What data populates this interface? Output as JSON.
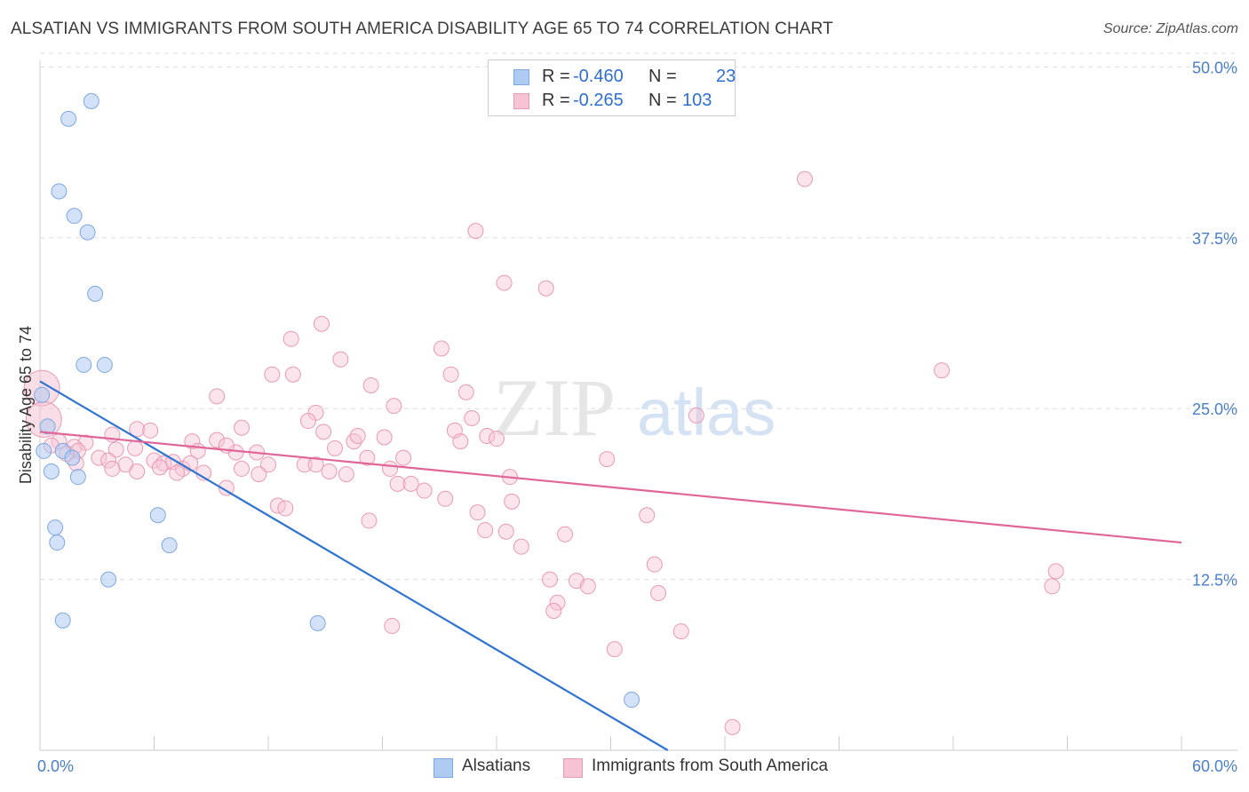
{
  "title": "ALSATIAN VS IMMIGRANTS FROM SOUTH AMERICA DISABILITY AGE 65 TO 74 CORRELATION CHART",
  "source": "Source: ZipAtlas.com",
  "legend": {
    "rows": [
      {
        "r_label": "R =",
        "r_value": "-0.460",
        "n_label": "N =",
        "n_value": "23"
      },
      {
        "r_label": "R =",
        "r_value": "-0.265",
        "n_label": "N =",
        "n_value": "103"
      }
    ]
  },
  "colors": {
    "blue_fill": "#aecbf2",
    "blue_stroke": "#7ea8e0",
    "blue_line": "#2f74d0",
    "pink_fill": "#f6c3d4",
    "pink_stroke": "#e99ab5",
    "pink_line": "#e0669a",
    "grid": "#dddddd",
    "axis_text": "#4a7fc9"
  },
  "chart_data": {
    "type": "scatter",
    "title": "ALSATIAN VS IMMIGRANTS FROM SOUTH AMERICA DISABILITY AGE 65 TO 74 CORRELATION CHART",
    "xlabel": "",
    "ylabel": "Disability Age 65 to 74",
    "xlim": [
      0,
      60
    ],
    "ylim": [
      0,
      51
    ],
    "x_tick_labels": [
      "0.0%",
      "60.0%"
    ],
    "y_ticks": [
      12.5,
      25.0,
      37.5,
      50.0
    ],
    "y_tick_labels": [
      "12.5%",
      "25.0%",
      "37.5%",
      "50.0%"
    ],
    "watermark": "ZIPatlas",
    "series": [
      {
        "name": "Alsatians",
        "trend": {
          "x0": 0,
          "y0": 27.0,
          "x1": 33.0,
          "y1": 0
        },
        "points": [
          [
            2.7,
            47.5
          ],
          [
            1.5,
            46.2
          ],
          [
            1.0,
            40.9
          ],
          [
            1.8,
            39.1
          ],
          [
            2.5,
            37.9
          ],
          [
            2.9,
            33.4
          ],
          [
            2.3,
            28.2
          ],
          [
            3.4,
            28.2
          ],
          [
            0.1,
            26.0
          ],
          [
            0.4,
            23.7
          ],
          [
            0.2,
            21.9
          ],
          [
            1.2,
            21.9
          ],
          [
            1.7,
            21.4
          ],
          [
            0.6,
            20.4
          ],
          [
            2.0,
            20.0
          ],
          [
            6.2,
            17.2
          ],
          [
            0.8,
            16.3
          ],
          [
            0.9,
            15.2
          ],
          [
            6.8,
            15.0
          ],
          [
            3.6,
            12.5
          ],
          [
            1.2,
            9.5
          ],
          [
            14.6,
            9.3
          ],
          [
            31.1,
            3.7
          ]
        ]
      },
      {
        "name": "Immigrants from South America",
        "trend": {
          "x0": 0,
          "y0": 23.3,
          "x1": 60,
          "y1": 15.2
        },
        "points": [
          [
            0.1,
            26.5
          ],
          [
            0.2,
            24.2
          ],
          [
            40.2,
            41.8
          ],
          [
            22.9,
            38.0
          ],
          [
            24.4,
            34.2
          ],
          [
            26.6,
            33.8
          ],
          [
            14.8,
            31.2
          ],
          [
            13.2,
            30.1
          ],
          [
            21.1,
            29.4
          ],
          [
            15.8,
            28.6
          ],
          [
            47.4,
            27.8
          ],
          [
            12.2,
            27.5
          ],
          [
            13.3,
            27.5
          ],
          [
            21.6,
            27.5
          ],
          [
            17.4,
            26.7
          ],
          [
            22.4,
            26.2
          ],
          [
            9.3,
            25.9
          ],
          [
            18.6,
            25.2
          ],
          [
            14.5,
            24.7
          ],
          [
            14.1,
            24.1
          ],
          [
            34.5,
            24.5
          ],
          [
            22.7,
            24.3
          ],
          [
            10.6,
            23.6
          ],
          [
            5.1,
            23.5
          ],
          [
            5.8,
            23.4
          ],
          [
            14.9,
            23.3
          ],
          [
            21.8,
            23.4
          ],
          [
            3.8,
            23.1
          ],
          [
            16.5,
            22.6
          ],
          [
            16.7,
            23.0
          ],
          [
            18.1,
            22.9
          ],
          [
            23.5,
            23.0
          ],
          [
            24.0,
            22.8
          ],
          [
            22.1,
            22.6
          ],
          [
            9.3,
            22.7
          ],
          [
            8.0,
            22.6
          ],
          [
            1.0,
            22.6
          ],
          [
            2.4,
            22.5
          ],
          [
            1.8,
            22.2
          ],
          [
            4.0,
            22.0
          ],
          [
            8.3,
            21.9
          ],
          [
            10.3,
            21.8
          ],
          [
            11.4,
            21.8
          ],
          [
            2.0,
            21.9
          ],
          [
            3.1,
            21.4
          ],
          [
            3.6,
            21.2
          ],
          [
            6.0,
            21.2
          ],
          [
            6.5,
            21.0
          ],
          [
            7.0,
            21.1
          ],
          [
            17.2,
            21.4
          ],
          [
            12.0,
            20.9
          ],
          [
            13.9,
            20.9
          ],
          [
            4.5,
            20.9
          ],
          [
            3.8,
            20.6
          ],
          [
            5.1,
            20.4
          ],
          [
            6.3,
            20.7
          ],
          [
            7.5,
            20.6
          ],
          [
            7.2,
            20.3
          ],
          [
            8.6,
            20.3
          ],
          [
            10.6,
            20.6
          ],
          [
            11.5,
            20.2
          ],
          [
            14.5,
            20.9
          ],
          [
            15.2,
            20.4
          ],
          [
            16.1,
            20.2
          ],
          [
            18.4,
            20.6
          ],
          [
            1.9,
            21.0
          ],
          [
            29.8,
            21.3
          ],
          [
            24.7,
            20.0
          ],
          [
            9.8,
            19.2
          ],
          [
            18.8,
            19.5
          ],
          [
            19.5,
            19.5
          ],
          [
            20.2,
            19.0
          ],
          [
            21.3,
            18.4
          ],
          [
            24.8,
            18.2
          ],
          [
            12.5,
            17.9
          ],
          [
            12.9,
            17.7
          ],
          [
            23.0,
            17.4
          ],
          [
            31.9,
            17.2
          ],
          [
            17.3,
            16.8
          ],
          [
            23.4,
            16.1
          ],
          [
            24.5,
            16.0
          ],
          [
            27.6,
            15.8
          ],
          [
            25.3,
            14.9
          ],
          [
            32.3,
            13.6
          ],
          [
            26.8,
            12.5
          ],
          [
            27.2,
            10.8
          ],
          [
            27.0,
            10.2
          ],
          [
            28.2,
            12.4
          ],
          [
            32.5,
            11.5
          ],
          [
            33.7,
            8.7
          ],
          [
            18.5,
            9.1
          ],
          [
            30.2,
            7.4
          ],
          [
            36.4,
            1.7
          ],
          [
            53.4,
            13.1
          ],
          [
            53.2,
            12.0
          ],
          [
            0.6,
            22.3
          ],
          [
            1.4,
            21.7
          ],
          [
            5.0,
            22.1
          ],
          [
            7.9,
            21.0
          ],
          [
            15.5,
            22.1
          ],
          [
            19.1,
            21.4
          ],
          [
            9.8,
            22.3
          ],
          [
            28.8,
            12.0
          ]
        ]
      }
    ]
  },
  "bottom_legend": [
    {
      "label": "Alsatians"
    },
    {
      "label": "Immigrants from South America"
    }
  ]
}
